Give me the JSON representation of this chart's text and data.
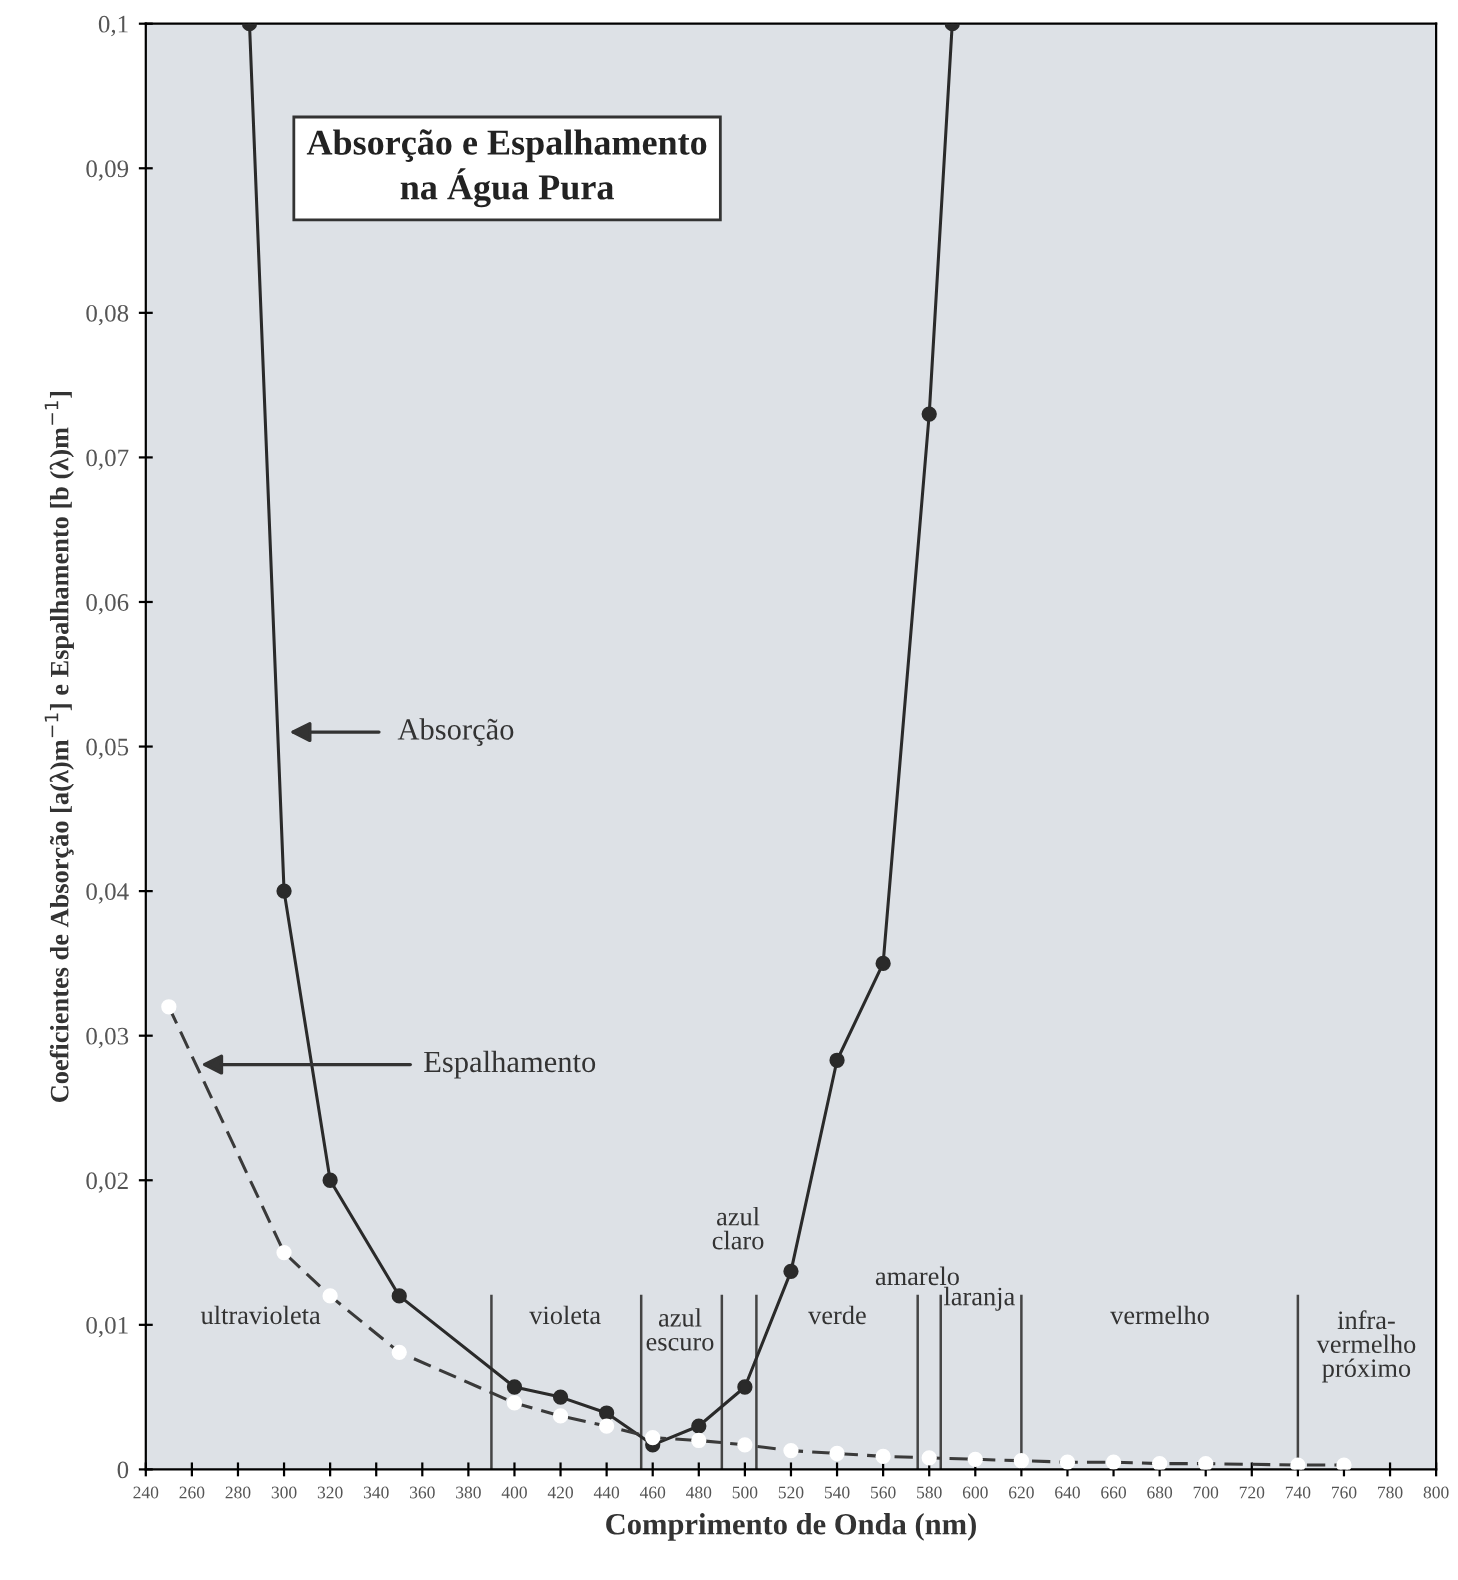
{
  "chart_data": {
    "type": "line",
    "title": "Absorção e Espalhamento\nna Água Pura",
    "xlabel": "Comprimento de Onda (nm)",
    "ylabel": "Coeficientes de Absorção [a(λ)m$^{−1}$] e Espalhamento [b (λ)m$^{−1}$]",
    "xlim": [
      240,
      800
    ],
    "ylim": [
      0,
      0.1
    ],
    "xticks": [
      240,
      260,
      280,
      300,
      320,
      340,
      360,
      380,
      400,
      420,
      440,
      460,
      480,
      500,
      520,
      540,
      560,
      580,
      600,
      620,
      640,
      660,
      680,
      700,
      720,
      740,
      760,
      780,
      800
    ],
    "yticks": [
      0,
      {
        "value": 0.01,
        "label": "0,01"
      },
      {
        "value": 0.02,
        "label": "0,02"
      },
      {
        "value": 0.03,
        "label": "0,03"
      },
      {
        "value": 0.04,
        "label": "0,04"
      },
      {
        "value": 0.05,
        "label": "0,05"
      },
      {
        "value": 0.06,
        "label": "0,06"
      },
      {
        "value": 0.07,
        "label": "0,07"
      },
      {
        "value": 0.08,
        "label": "0,08"
      },
      {
        "value": 0.09,
        "label": "0,09"
      },
      {
        "value": 0.1,
        "label": "0,1"
      }
    ],
    "grid": false,
    "legend": false,
    "marker": "circle",
    "series": [
      {
        "color": "#2a2a2a",
        "line_style": "solid",
        "x": [
          285,
          300,
          320,
          350,
          400,
          420,
          440,
          460,
          480,
          500,
          520,
          540,
          560,
          580,
          590
        ],
        "values": [
          0.1,
          0.04,
          0.02,
          0.012,
          0.0057,
          0.005,
          0.0039,
          0.0017,
          0.003,
          0.0057,
          0.0137,
          0.0283,
          0.035,
          0.073,
          0.1
        ]
      },
      {
        "color": "#3a3a3a",
        "line_style": "dashed",
        "x": [
          250,
          300,
          320,
          350,
          400,
          420,
          440,
          460,
          480,
          500,
          520,
          540,
          560,
          580,
          600,
          620,
          640,
          660,
          680,
          700,
          740,
          760
        ],
        "values": [
          0.032,
          0.015,
          0.012,
          0.0081,
          0.0046,
          0.0037,
          0.003,
          0.0022,
          0.002,
          0.0017,
          0.0013,
          0.0011,
          0.0009,
          0.0008,
          0.0007,
          0.0006,
          0.0005,
          0.0005,
          0.0004,
          0.0004,
          0.0003,
          0.0003
        ]
      }
    ],
    "ref_lines": [
      {
        "axis": "x",
        "value": 390,
        "label": null
      },
      {
        "axis": "x",
        "value": 455,
        "label": null
      },
      {
        "axis": "x",
        "value": 490,
        "label": null
      },
      {
        "axis": "x",
        "value": 505,
        "label": null
      },
      {
        "axis": "x",
        "value": 575,
        "label": null
      },
      {
        "axis": "x",
        "value": 585,
        "label": null
      },
      {
        "axis": "x",
        "value": 620,
        "label": null
      },
      {
        "axis": "x",
        "value": 740,
        "label": null
      }
    ],
    "annotations": [
      "Absorção",
      {
        "text": "Espalhamento",
        "x": 264,
        "y": 0.028
      },
      "ultravioleta",
      "violeta",
      "azul\nescuro",
      "azul\nclaro",
      "verde",
      "amarelo",
      "laranja",
      "vermelho",
      "infra-\nvermelho\npróximo"
    ]
  }
}
